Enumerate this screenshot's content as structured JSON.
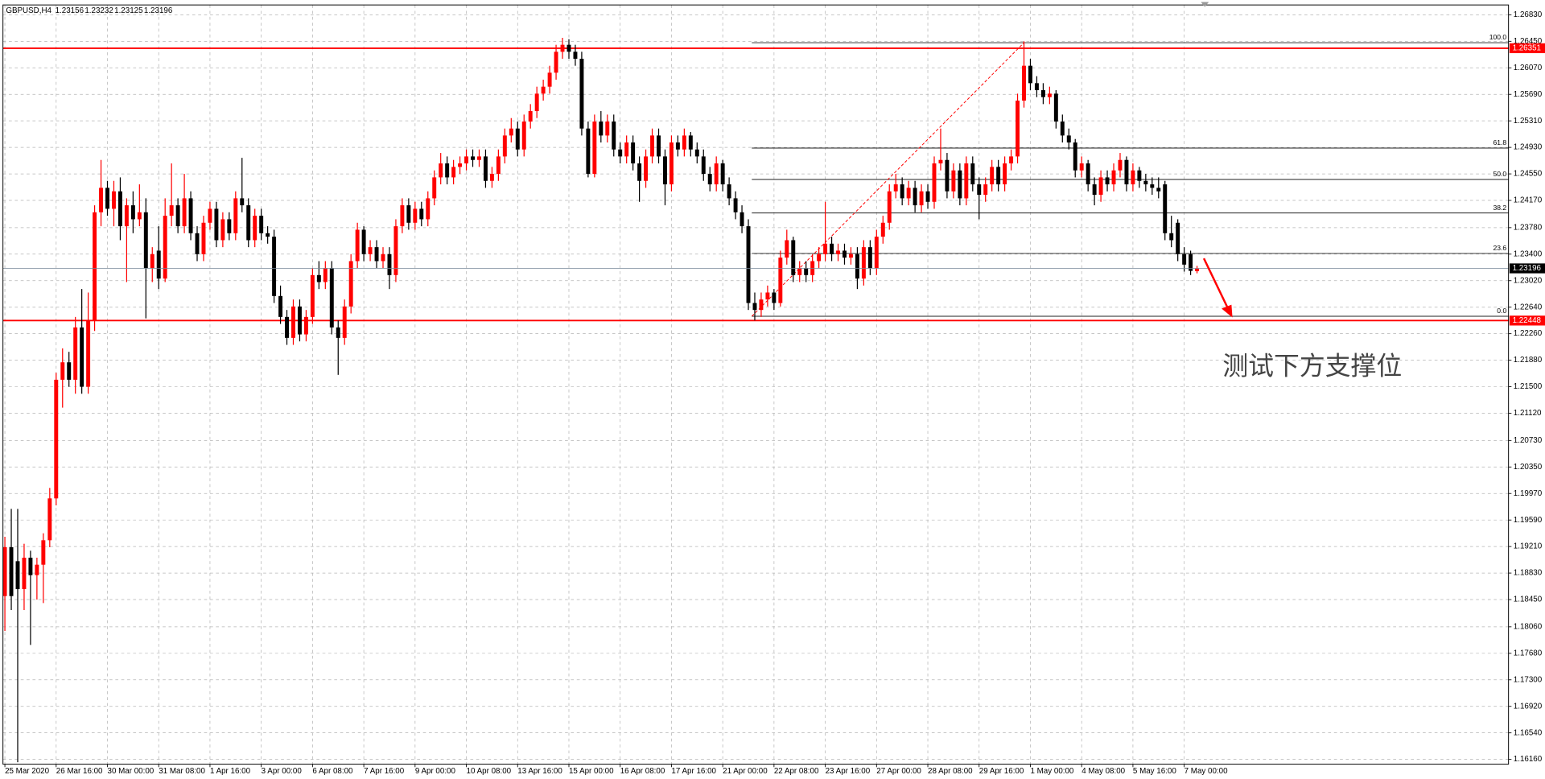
{
  "chart_data": {
    "type": "candlestick",
    "title": "GBPUSD,H4",
    "up_color": "#ff0000",
    "down_color": "#000000",
    "grid": true,
    "xlim": [
      -0.3,
      234.6
    ],
    "ylim": [
      1.16091,
      1.26971
    ],
    "xticks": [
      {
        "value": 0,
        "label": "25 Mar 2020"
      },
      {
        "value": 8,
        "label": "26 Mar 16:00"
      },
      {
        "value": 16,
        "label": "30 Mar 00:00"
      },
      {
        "value": 24,
        "label": "31 Mar 08:00"
      },
      {
        "value": 32,
        "label": "1 Apr 16:00"
      },
      {
        "value": 40,
        "label": "3 Apr 00:00"
      },
      {
        "value": 48,
        "label": "6 Apr 08:00"
      },
      {
        "value": 56,
        "label": "7 Apr 16:00"
      },
      {
        "value": 64,
        "label": "9 Apr 00:00"
      },
      {
        "value": 72,
        "label": "10 Apr 08:00"
      },
      {
        "value": 80,
        "label": "13 Apr 16:00"
      },
      {
        "value": 88,
        "label": "15 Apr 00:00"
      },
      {
        "value": 96,
        "label": "16 Apr 08:00"
      },
      {
        "value": 104,
        "label": "17 Apr 16:00"
      },
      {
        "value": 112,
        "label": "21 Apr 00:00"
      },
      {
        "value": 120,
        "label": "22 Apr 08:00"
      },
      {
        "value": 128,
        "label": "23 Apr 16:00"
      },
      {
        "value": 136,
        "label": "27 Apr 00:00"
      },
      {
        "value": 144,
        "label": "28 Apr 08:00"
      },
      {
        "value": 152,
        "label": "29 Apr 16:00"
      },
      {
        "value": 160,
        "label": "1 May 00:00"
      },
      {
        "value": 168,
        "label": "4 May 08:00"
      },
      {
        "value": 176,
        "label": "5 May 16:00"
      },
      {
        "value": 184,
        "label": "7 May 00:00"
      }
    ],
    "yticks": [
      {
        "value": 1.2683,
        "label": "1.26830"
      },
      {
        "value": 1.2645,
        "label": "1.26450"
      },
      {
        "value": 1.2607,
        "label": "1.26070"
      },
      {
        "value": 1.2569,
        "label": "1.25690"
      },
      {
        "value": 1.2531,
        "label": "1.25310"
      },
      {
        "value": 1.2493,
        "label": "1.24930"
      },
      {
        "value": 1.2455,
        "label": "1.24550"
      },
      {
        "value": 1.2417,
        "label": "1.24170"
      },
      {
        "value": 1.2378,
        "label": "1.23780"
      },
      {
        "value": 1.234,
        "label": "1.23400"
      },
      {
        "value": 1.2302,
        "label": "1.23020"
      },
      {
        "value": 1.2264,
        "label": "1.22640"
      },
      {
        "value": 1.2226,
        "label": "1.22260"
      },
      {
        "value": 1.2188,
        "label": "1.21880"
      },
      {
        "value": 1.215,
        "label": "1.21500"
      },
      {
        "value": 1.2112,
        "label": "1.21120"
      },
      {
        "value": 1.2073,
        "label": "1.20730"
      },
      {
        "value": 1.2035,
        "label": "1.20350"
      },
      {
        "value": 1.1997,
        "label": "1.19970"
      },
      {
        "value": 1.1959,
        "label": "1.19590"
      },
      {
        "value": 1.1921,
        "label": "1.19210"
      },
      {
        "value": 1.1883,
        "label": "1.18830"
      },
      {
        "value": 1.1845,
        "label": "1.18450"
      },
      {
        "value": 1.1806,
        "label": "1.18060"
      },
      {
        "value": 1.1768,
        "label": "1.17680"
      },
      {
        "value": 1.173,
        "label": "1.17300"
      },
      {
        "value": 1.1692,
        "label": "1.16920"
      },
      {
        "value": 1.1654,
        "label": "1.16540"
      },
      {
        "value": 1.1616,
        "label": "1.16160"
      }
    ],
    "hlines": [
      {
        "value": 1.26351,
        "color": "#ff0000"
      },
      {
        "value": 1.22448,
        "color": "#ff0000"
      }
    ],
    "fibo": {
      "start": 117,
      "end": 159,
      "levels": [
        {
          "value": 100,
          "label": "100.0",
          "price": 1.2643
        },
        {
          "value": 61.8,
          "label": "61.8",
          "price": 1.2492
        },
        {
          "value": 50,
          "label": "50.0",
          "price": 1.2447
        },
        {
          "value": 38.2,
          "label": "38.2",
          "price": 1.2399
        },
        {
          "value": 23.6,
          "label": "23.6",
          "price": 1.2341
        },
        {
          "value": 0,
          "label": "0.0",
          "price": 1.2251
        }
      ]
    },
    "annotation": "测试下方支撑位",
    "ohlc": [
      [
        1.185,
        1.1935,
        1.18,
        1.192
      ],
      [
        1.192,
        1.1975,
        1.183,
        1.185
      ],
      [
        1.19,
        1.1975,
        1.1612,
        1.186
      ],
      [
        1.186,
        1.1925,
        1.183,
        1.1905
      ],
      [
        1.1905,
        1.1915,
        1.178,
        1.188
      ],
      [
        1.188,
        1.1905,
        1.1845,
        1.1895
      ],
      [
        1.1895,
        1.194,
        1.184,
        1.193
      ],
      [
        1.193,
        1.2005,
        1.192,
        1.199
      ],
      [
        1.199,
        1.217,
        1.198,
        1.216
      ],
      [
        1.216,
        1.2205,
        1.212,
        1.2185
      ],
      [
        1.2185,
        1.22,
        1.215,
        1.216
      ],
      [
        1.216,
        1.225,
        1.214,
        1.2235
      ],
      [
        1.2235,
        1.229,
        1.214,
        1.215
      ],
      [
        1.215,
        1.2285,
        1.214,
        1.2245
      ],
      [
        1.2245,
        1.241,
        1.223,
        1.24
      ],
      [
        1.24,
        1.2475,
        1.238,
        1.2435
      ],
      [
        1.2435,
        1.2445,
        1.2395,
        1.2405
      ],
      [
        1.2405,
        1.2445,
        1.238,
        1.243
      ],
      [
        1.243,
        1.245,
        1.236,
        1.238
      ],
      [
        1.238,
        1.242,
        1.23,
        1.241
      ],
      [
        1.241,
        1.243,
        1.237,
        1.239
      ],
      [
        1.239,
        1.244,
        1.238,
        1.24
      ],
      [
        1.24,
        1.242,
        1.2248,
        1.232
      ],
      [
        1.232,
        1.235,
        1.23,
        1.234
      ],
      [
        1.2345,
        1.238,
        1.229,
        1.2305
      ],
      [
        1.2305,
        1.242,
        1.23,
        1.2395
      ],
      [
        1.2395,
        1.247,
        1.238,
        1.241
      ],
      [
        1.241,
        1.242,
        1.237,
        1.238
      ],
      [
        1.238,
        1.2455,
        1.237,
        1.242
      ],
      [
        1.242,
        1.243,
        1.236,
        1.237
      ],
      [
        1.237,
        1.238,
        1.233,
        1.234
      ],
      [
        1.234,
        1.2395,
        1.233,
        1.2385
      ],
      [
        1.2385,
        1.2415,
        1.2375,
        1.2405
      ],
      [
        1.2405,
        1.2415,
        1.235,
        1.236
      ],
      [
        1.236,
        1.24,
        1.235,
        1.239
      ],
      [
        1.239,
        1.24,
        1.236,
        1.237
      ],
      [
        1.237,
        1.243,
        1.236,
        1.242
      ],
      [
        1.242,
        1.2478,
        1.24,
        1.241
      ],
      [
        1.241,
        1.242,
        1.235,
        1.236
      ],
      [
        1.236,
        1.2405,
        1.235,
        1.2395
      ],
      [
        1.2395,
        1.2405,
        1.236,
        1.237
      ],
      [
        1.237,
        1.238,
        1.2355,
        1.2365
      ],
      [
        1.2365,
        1.2375,
        1.227,
        1.228
      ],
      [
        1.228,
        1.2295,
        1.224,
        1.225
      ],
      [
        1.225,
        1.226,
        1.221,
        1.222
      ],
      [
        1.222,
        1.2275,
        1.221,
        1.2265
      ],
      [
        1.2265,
        1.2275,
        1.2215,
        1.2225
      ],
      [
        1.2225,
        1.226,
        1.2215,
        1.225
      ],
      [
        1.225,
        1.232,
        1.224,
        1.231
      ],
      [
        1.231,
        1.233,
        1.229,
        1.23
      ],
      [
        1.23,
        1.233,
        1.229,
        1.232
      ],
      [
        1.232,
        1.233,
        1.2225,
        1.2235
      ],
      [
        1.2235,
        1.2245,
        1.2167,
        1.222
      ],
      [
        1.222,
        1.2275,
        1.221,
        1.2265
      ],
      [
        1.2265,
        1.234,
        1.2255,
        1.233
      ],
      [
        1.233,
        1.2385,
        1.232,
        1.2375
      ],
      [
        1.2375,
        1.238,
        1.233,
        1.234
      ],
      [
        1.234,
        1.236,
        1.233,
        1.235
      ],
      [
        1.235,
        1.236,
        1.232,
        1.233
      ],
      [
        1.233,
        1.235,
        1.232,
        1.234
      ],
      [
        1.234,
        1.235,
        1.229,
        1.231
      ],
      [
        1.231,
        1.239,
        1.23,
        1.238
      ],
      [
        1.238,
        1.242,
        1.237,
        1.241
      ],
      [
        1.241,
        1.242,
        1.2375,
        1.2385
      ],
      [
        1.2385,
        1.2415,
        1.2375,
        1.2405
      ],
      [
        1.2405,
        1.2415,
        1.238,
        1.239
      ],
      [
        1.239,
        1.243,
        1.238,
        1.242
      ],
      [
        1.242,
        1.246,
        1.241,
        1.245
      ],
      [
        1.245,
        1.2485,
        1.244,
        1.247
      ],
      [
        1.247,
        1.248,
        1.244,
        1.245
      ],
      [
        1.245,
        1.2475,
        1.244,
        1.2465
      ],
      [
        1.2465,
        1.248,
        1.2455,
        1.247
      ],
      [
        1.247,
        1.249,
        1.246,
        1.248
      ],
      [
        1.248,
        1.249,
        1.2465,
        1.2475
      ],
      [
        1.2475,
        1.249,
        1.2465,
        1.248
      ],
      [
        1.248,
        1.249,
        1.2435,
        1.2445
      ],
      [
        1.2445,
        1.2465,
        1.2435,
        1.2455
      ],
      [
        1.2455,
        1.249,
        1.2445,
        1.248
      ],
      [
        1.248,
        1.252,
        1.247,
        1.251
      ],
      [
        1.251,
        1.2535,
        1.25,
        1.252
      ],
      [
        1.252,
        1.253,
        1.248,
        1.249
      ],
      [
        1.249,
        1.254,
        1.248,
        1.253
      ],
      [
        1.253,
        1.2555,
        1.252,
        1.2545
      ],
      [
        1.2545,
        1.258,
        1.2535,
        1.257
      ],
      [
        1.257,
        1.259,
        1.256,
        1.258
      ],
      [
        1.258,
        1.261,
        1.257,
        1.26
      ],
      [
        1.26,
        1.264,
        1.259,
        1.263
      ],
      [
        1.263,
        1.265,
        1.262,
        1.264
      ],
      [
        1.264,
        1.2648,
        1.262,
        1.263
      ],
      [
        1.263,
        1.264,
        1.261,
        1.262
      ],
      [
        1.262,
        1.263,
        1.251,
        1.252
      ],
      [
        1.252,
        1.253,
        1.245,
        1.2455
      ],
      [
        1.2455,
        1.254,
        1.245,
        1.253
      ],
      [
        1.253,
        1.2545,
        1.25,
        1.251
      ],
      [
        1.251,
        1.254,
        1.25,
        1.253
      ],
      [
        1.253,
        1.254,
        1.248,
        1.249
      ],
      [
        1.249,
        1.25,
        1.247,
        1.248
      ],
      [
        1.248,
        1.251,
        1.247,
        1.25
      ],
      [
        1.25,
        1.251,
        1.246,
        1.247
      ],
      [
        1.247,
        1.248,
        1.2415,
        1.2445
      ],
      [
        1.2445,
        1.249,
        1.2435,
        1.248
      ],
      [
        1.248,
        1.252,
        1.247,
        1.251
      ],
      [
        1.251,
        1.252,
        1.247,
        1.248
      ],
      [
        1.248,
        1.249,
        1.241,
        1.244
      ],
      [
        1.244,
        1.251,
        1.243,
        1.25
      ],
      [
        1.25,
        1.251,
        1.248,
        1.249
      ],
      [
        1.249,
        1.252,
        1.248,
        1.251
      ],
      [
        1.251,
        1.2515,
        1.248,
        1.249
      ],
      [
        1.249,
        1.25,
        1.247,
        1.248
      ],
      [
        1.248,
        1.249,
        1.2445,
        1.2455
      ],
      [
        1.2455,
        1.2465,
        1.243,
        1.244
      ],
      [
        1.244,
        1.248,
        1.243,
        1.247
      ],
      [
        1.247,
        1.2475,
        1.243,
        1.244
      ],
      [
        1.244,
        1.245,
        1.241,
        1.242
      ],
      [
        1.242,
        1.243,
        1.239,
        1.24
      ],
      [
        1.24,
        1.241,
        1.237,
        1.238
      ],
      [
        1.238,
        1.239,
        1.226,
        1.227
      ],
      [
        1.227,
        1.2285,
        1.2245,
        1.226
      ],
      [
        1.226,
        1.2285,
        1.225,
        1.2275
      ],
      [
        1.2275,
        1.2295,
        1.2265,
        1.2285
      ],
      [
        1.2285,
        1.229,
        1.226,
        1.227
      ],
      [
        1.227,
        1.2345,
        1.2265,
        1.2335
      ],
      [
        1.2335,
        1.2375,
        1.2325,
        1.236
      ],
      [
        1.236,
        1.2365,
        1.23,
        1.231
      ],
      [
        1.231,
        1.233,
        1.23,
        1.232
      ],
      [
        1.232,
        1.233,
        1.23,
        1.231
      ],
      [
        1.231,
        1.234,
        1.23,
        1.233
      ],
      [
        1.233,
        1.235,
        1.232,
        1.234
      ],
      [
        1.234,
        1.2415,
        1.233,
        1.2355
      ],
      [
        1.2355,
        1.2365,
        1.233,
        1.234
      ],
      [
        1.234,
        1.2355,
        1.233,
        1.2345
      ],
      [
        1.2345,
        1.2355,
        1.2325,
        1.2335
      ],
      [
        1.2335,
        1.235,
        1.2325,
        1.234
      ],
      [
        1.234,
        1.235,
        1.229,
        1.2305
      ],
      [
        1.2305,
        1.236,
        1.2295,
        1.235
      ],
      [
        1.235,
        1.236,
        1.231,
        1.232
      ],
      [
        1.232,
        1.2375,
        1.231,
        1.2365
      ],
      [
        1.2365,
        1.2395,
        1.2355,
        1.2385
      ],
      [
        1.2385,
        1.244,
        1.2375,
        1.243
      ],
      [
        1.243,
        1.2455,
        1.242,
        1.244
      ],
      [
        1.244,
        1.245,
        1.241,
        1.242
      ],
      [
        1.242,
        1.2445,
        1.241,
        1.2435
      ],
      [
        1.2435,
        1.2445,
        1.24,
        1.241
      ],
      [
        1.241,
        1.244,
        1.24,
        1.243
      ],
      [
        1.243,
        1.244,
        1.2405,
        1.2415
      ],
      [
        1.2415,
        1.248,
        1.2405,
        1.247
      ],
      [
        1.247,
        1.252,
        1.246,
        1.2475
      ],
      [
        1.2475,
        1.2485,
        1.242,
        1.243
      ],
      [
        1.243,
        1.247,
        1.242,
        1.246
      ],
      [
        1.246,
        1.247,
        1.241,
        1.242
      ],
      [
        1.242,
        1.248,
        1.241,
        1.247
      ],
      [
        1.247,
        1.248,
        1.243,
        1.244
      ],
      [
        1.244,
        1.245,
        1.239,
        1.2425
      ],
      [
        1.2425,
        1.245,
        1.2415,
        1.244
      ],
      [
        1.244,
        1.2475,
        1.243,
        1.2465
      ],
      [
        1.2465,
        1.2475,
        1.243,
        1.244
      ],
      [
        1.244,
        1.248,
        1.243,
        1.247
      ],
      [
        1.247,
        1.249,
        1.246,
        1.248
      ],
      [
        1.248,
        1.257,
        1.247,
        1.256
      ],
      [
        1.256,
        1.2645,
        1.255,
        1.261
      ],
      [
        1.261,
        1.262,
        1.2575,
        1.2585
      ],
      [
        1.2585,
        1.2595,
        1.2565,
        1.2575
      ],
      [
        1.2575,
        1.2585,
        1.2555,
        1.2565
      ],
      [
        1.2565,
        1.258,
        1.2555,
        1.257
      ],
      [
        1.257,
        1.2575,
        1.252,
        1.253
      ],
      [
        1.253,
        1.254,
        1.25,
        1.251
      ],
      [
        1.251,
        1.252,
        1.249,
        1.25
      ],
      [
        1.25,
        1.2505,
        1.245,
        1.246
      ],
      [
        1.246,
        1.248,
        1.245,
        1.247
      ],
      [
        1.247,
        1.2475,
        1.243,
        1.244
      ],
      [
        1.244,
        1.245,
        1.241,
        1.2425
      ],
      [
        1.2425,
        1.246,
        1.2415,
        1.245
      ],
      [
        1.245,
        1.246,
        1.243,
        1.244
      ],
      [
        1.244,
        1.247,
        1.243,
        1.246
      ],
      [
        1.246,
        1.2485,
        1.245,
        1.2475
      ],
      [
        1.2475,
        1.248,
        1.243,
        1.244
      ],
      [
        1.244,
        1.247,
        1.243,
        1.246
      ],
      [
        1.246,
        1.2465,
        1.2435,
        1.2445
      ],
      [
        1.2445,
        1.2455,
        1.243,
        1.244
      ],
      [
        1.244,
        1.245,
        1.2425,
        1.2435
      ],
      [
        1.2435,
        1.245,
        1.242,
        1.243
      ],
      [
        1.244,
        1.2445,
        1.236,
        1.237
      ],
      [
        1.237,
        1.2395,
        1.235,
        1.236
      ],
      [
        1.2385,
        1.239,
        1.233,
        1.234
      ],
      [
        1.234,
        1.235,
        1.2315,
        1.2325
      ],
      [
        1.234,
        1.2345,
        1.231,
        1.2316
      ],
      [
        1.23156,
        1.23232,
        1.23125,
        1.23196
      ]
    ]
  }
}
